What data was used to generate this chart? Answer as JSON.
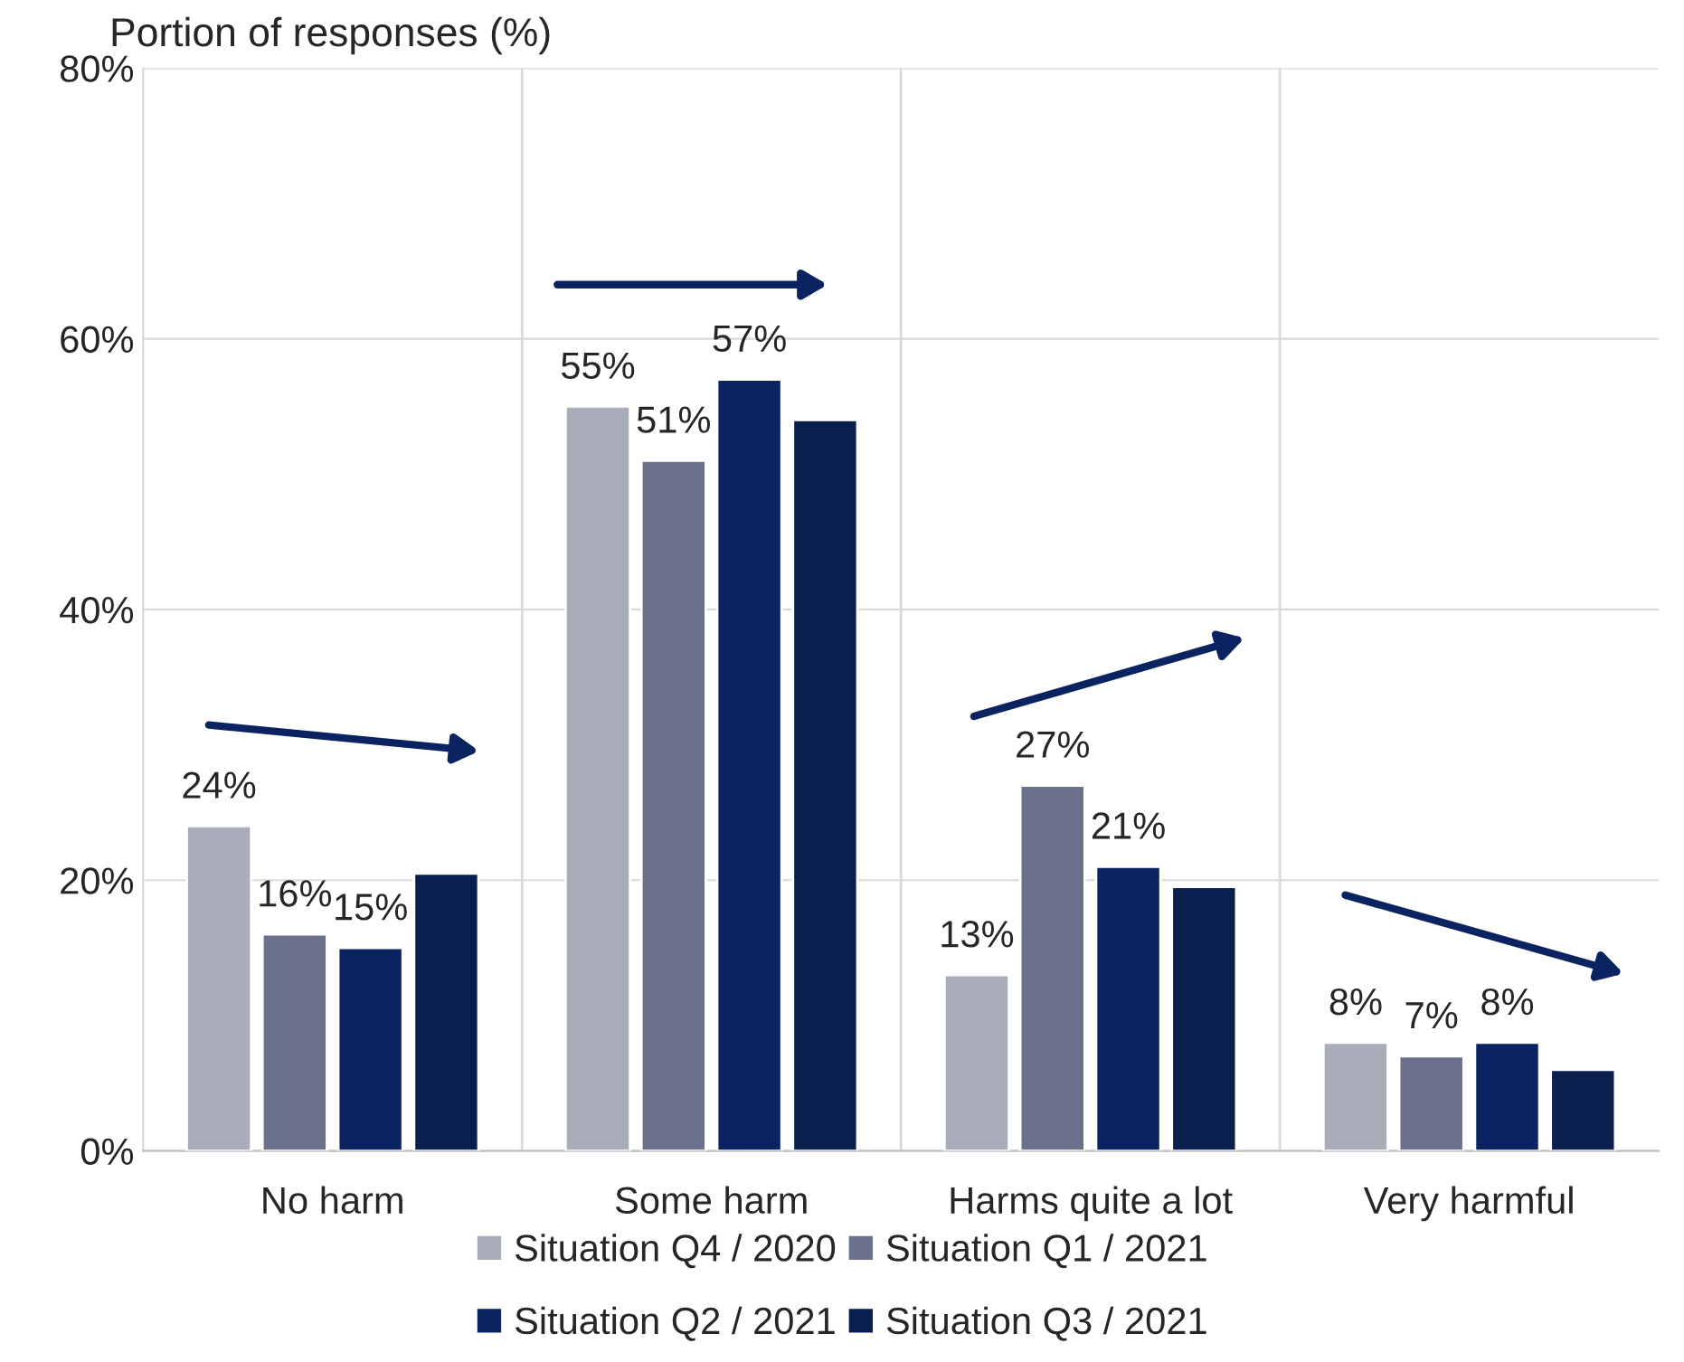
{
  "chart_data": {
    "type": "bar",
    "ylabel": "Portion of responses (%)",
    "categories": [
      "No harm",
      "Some harm",
      "Harms quite a lot",
      "Very harmful"
    ],
    "series": [
      {
        "name": "Situation Q4 / 2020",
        "color": "#a9adba",
        "values": [
          24,
          55,
          13,
          8
        ],
        "value_labels": [
          "24%",
          "55%",
          "13%",
          "8%"
        ]
      },
      {
        "name": "Situation Q1 / 2021",
        "color": "#6b708b",
        "values": [
          16,
          51,
          27,
          7
        ],
        "value_labels": [
          "16%",
          "51%",
          "27%",
          "7%"
        ]
      },
      {
        "name": "Situation Q2 / 2021",
        "color": "#0b2360",
        "values": [
          15,
          57,
          21,
          8
        ],
        "value_labels": [
          "15%",
          "57%",
          "21%",
          "8%"
        ]
      },
      {
        "name": "Situation Q3 / 2021",
        "color": "#0b1f4e",
        "values": [
          20.5,
          54,
          19.5,
          6
        ]
      }
    ],
    "ylim": [
      0,
      80
    ],
    "yticks": [
      {
        "value": 0,
        "label": "0%"
      },
      {
        "value": 20,
        "label": "20%"
      },
      {
        "value": 40,
        "label": "40%"
      },
      {
        "value": 60,
        "label": "60%"
      },
      {
        "value": 80,
        "label": "80%"
      }
    ],
    "grid": true,
    "legend": "bottom"
  }
}
